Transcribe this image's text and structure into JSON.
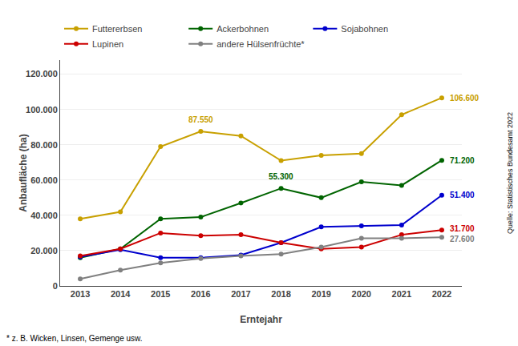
{
  "chart_data": {
    "type": "line",
    "x": [
      2013,
      2014,
      2015,
      2016,
      2017,
      2018,
      2019,
      2020,
      2021,
      2022
    ],
    "series": [
      {
        "name": "Futtererbsen",
        "color": "#c8a000",
        "marker": "circle",
        "values": [
          38000,
          42000,
          79000,
          87550,
          85000,
          71000,
          74000,
          75000,
          97000,
          106600
        ]
      },
      {
        "name": "Ackerbohnen",
        "color": "#006400",
        "marker": "circle",
        "values": [
          16000,
          21000,
          38000,
          39000,
          47000,
          55300,
          50000,
          59000,
          57000,
          71200
        ]
      },
      {
        "name": "Sojabohnen",
        "color": "#0000cd",
        "marker": "circle",
        "values": [
          16500,
          20500,
          16000,
          16000,
          17500,
          24500,
          33500,
          34000,
          34500,
          51400
        ]
      },
      {
        "name": "Lupinen",
        "color": "#cc0000",
        "marker": "circle",
        "values": [
          17000,
          21000,
          30000,
          28500,
          29000,
          24500,
          21000,
          22000,
          29000,
          31700
        ]
      },
      {
        "name": "andere Hülsenfrüchte*",
        "color": "#808080",
        "marker": "circle",
        "values": [
          4000,
          9000,
          13000,
          15500,
          17000,
          18000,
          22000,
          27000,
          27000,
          27600
        ]
      }
    ],
    "xlabel": "Erntejahr",
    "ylabel": "Anbaufläche (ha)",
    "xlim": [
      2012.5,
      2022.5
    ],
    "xticks": [
      2013,
      2014,
      2015,
      2016,
      2017,
      2018,
      2019,
      2020,
      2021,
      2022
    ],
    "ylim": [
      0,
      128000
    ],
    "yticks": [
      0,
      {
        "value": 20000,
        "label": "20.000"
      },
      {
        "value": 40000,
        "label": "40.000"
      },
      {
        "value": 60000,
        "label": "60.000"
      },
      {
        "value": 80000,
        "label": "80.000"
      },
      {
        "value": 100000,
        "label": "100.000"
      },
      {
        "value": 120000,
        "label": "120.000"
      }
    ],
    "grid": true,
    "legend": "top",
    "annotations": [
      {
        "text": "87.550",
        "x": 2016,
        "y": 87550,
        "color": "#c8a000"
      },
      {
        "text": "55.300",
        "x": 2018,
        "y": 55300,
        "color": "#006400"
      },
      {
        "text": "106.600",
        "x": 2022,
        "y": 106600,
        "color": "#c8a000"
      },
      {
        "text": "71.200",
        "x": 2022,
        "y": 71200,
        "color": "#006400"
      },
      {
        "text": "51.400",
        "x": 2022,
        "y": 51400,
        "color": "#0000cd"
      },
      {
        "text": "31.700",
        "x": 2022,
        "y": 31700,
        "color": "#cc0000"
      },
      {
        "text": "27.600",
        "x": 2022,
        "y": 27600,
        "color": "#808080"
      }
    ],
    "footnote": "* z. B. Wicken, Linsen, Gemenge usw.",
    "source": "Quelle: Statistisches Bundesamt 2022"
  }
}
